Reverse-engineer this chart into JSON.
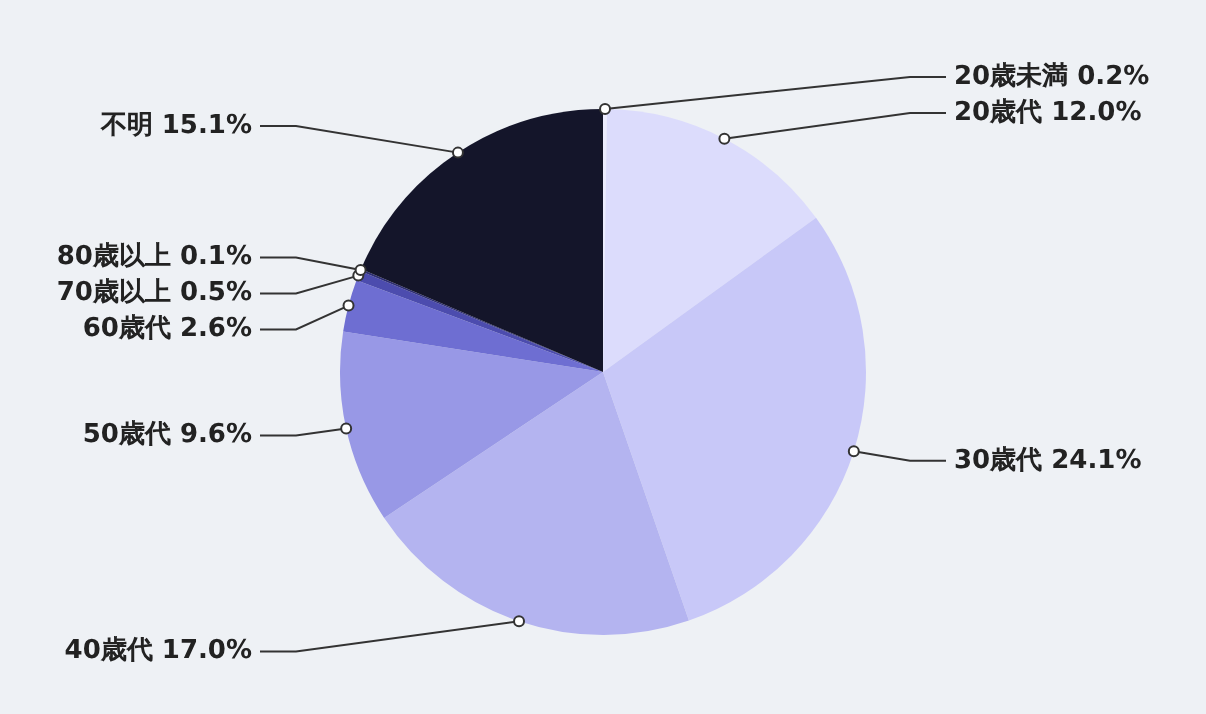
{
  "chart_data": {
    "type": "pie",
    "categories": [
      "20歳未満",
      "20歳代",
      "30歳代",
      "40歳代",
      "50歳代",
      "60歳代",
      "70歳以上",
      "80歳以上",
      "不明"
    ],
    "values": [
      0.2,
      12.0,
      24.1,
      17.0,
      9.6,
      2.6,
      0.5,
      0.1,
      15.1
    ],
    "value_labels": [
      "0.2%",
      "12.0%",
      "24.1%",
      "17.0%",
      "9.6%",
      "2.6%",
      "0.5%",
      "0.1%",
      "15.1%"
    ],
    "colors": [
      "#ececfe",
      "#dcdcfc",
      "#c8c8f8",
      "#b4b4f0",
      "#9898e6",
      "#6e6ed2",
      "#4c4cae",
      "#2e2e74",
      "#14152a"
    ],
    "legend": false
  }
}
